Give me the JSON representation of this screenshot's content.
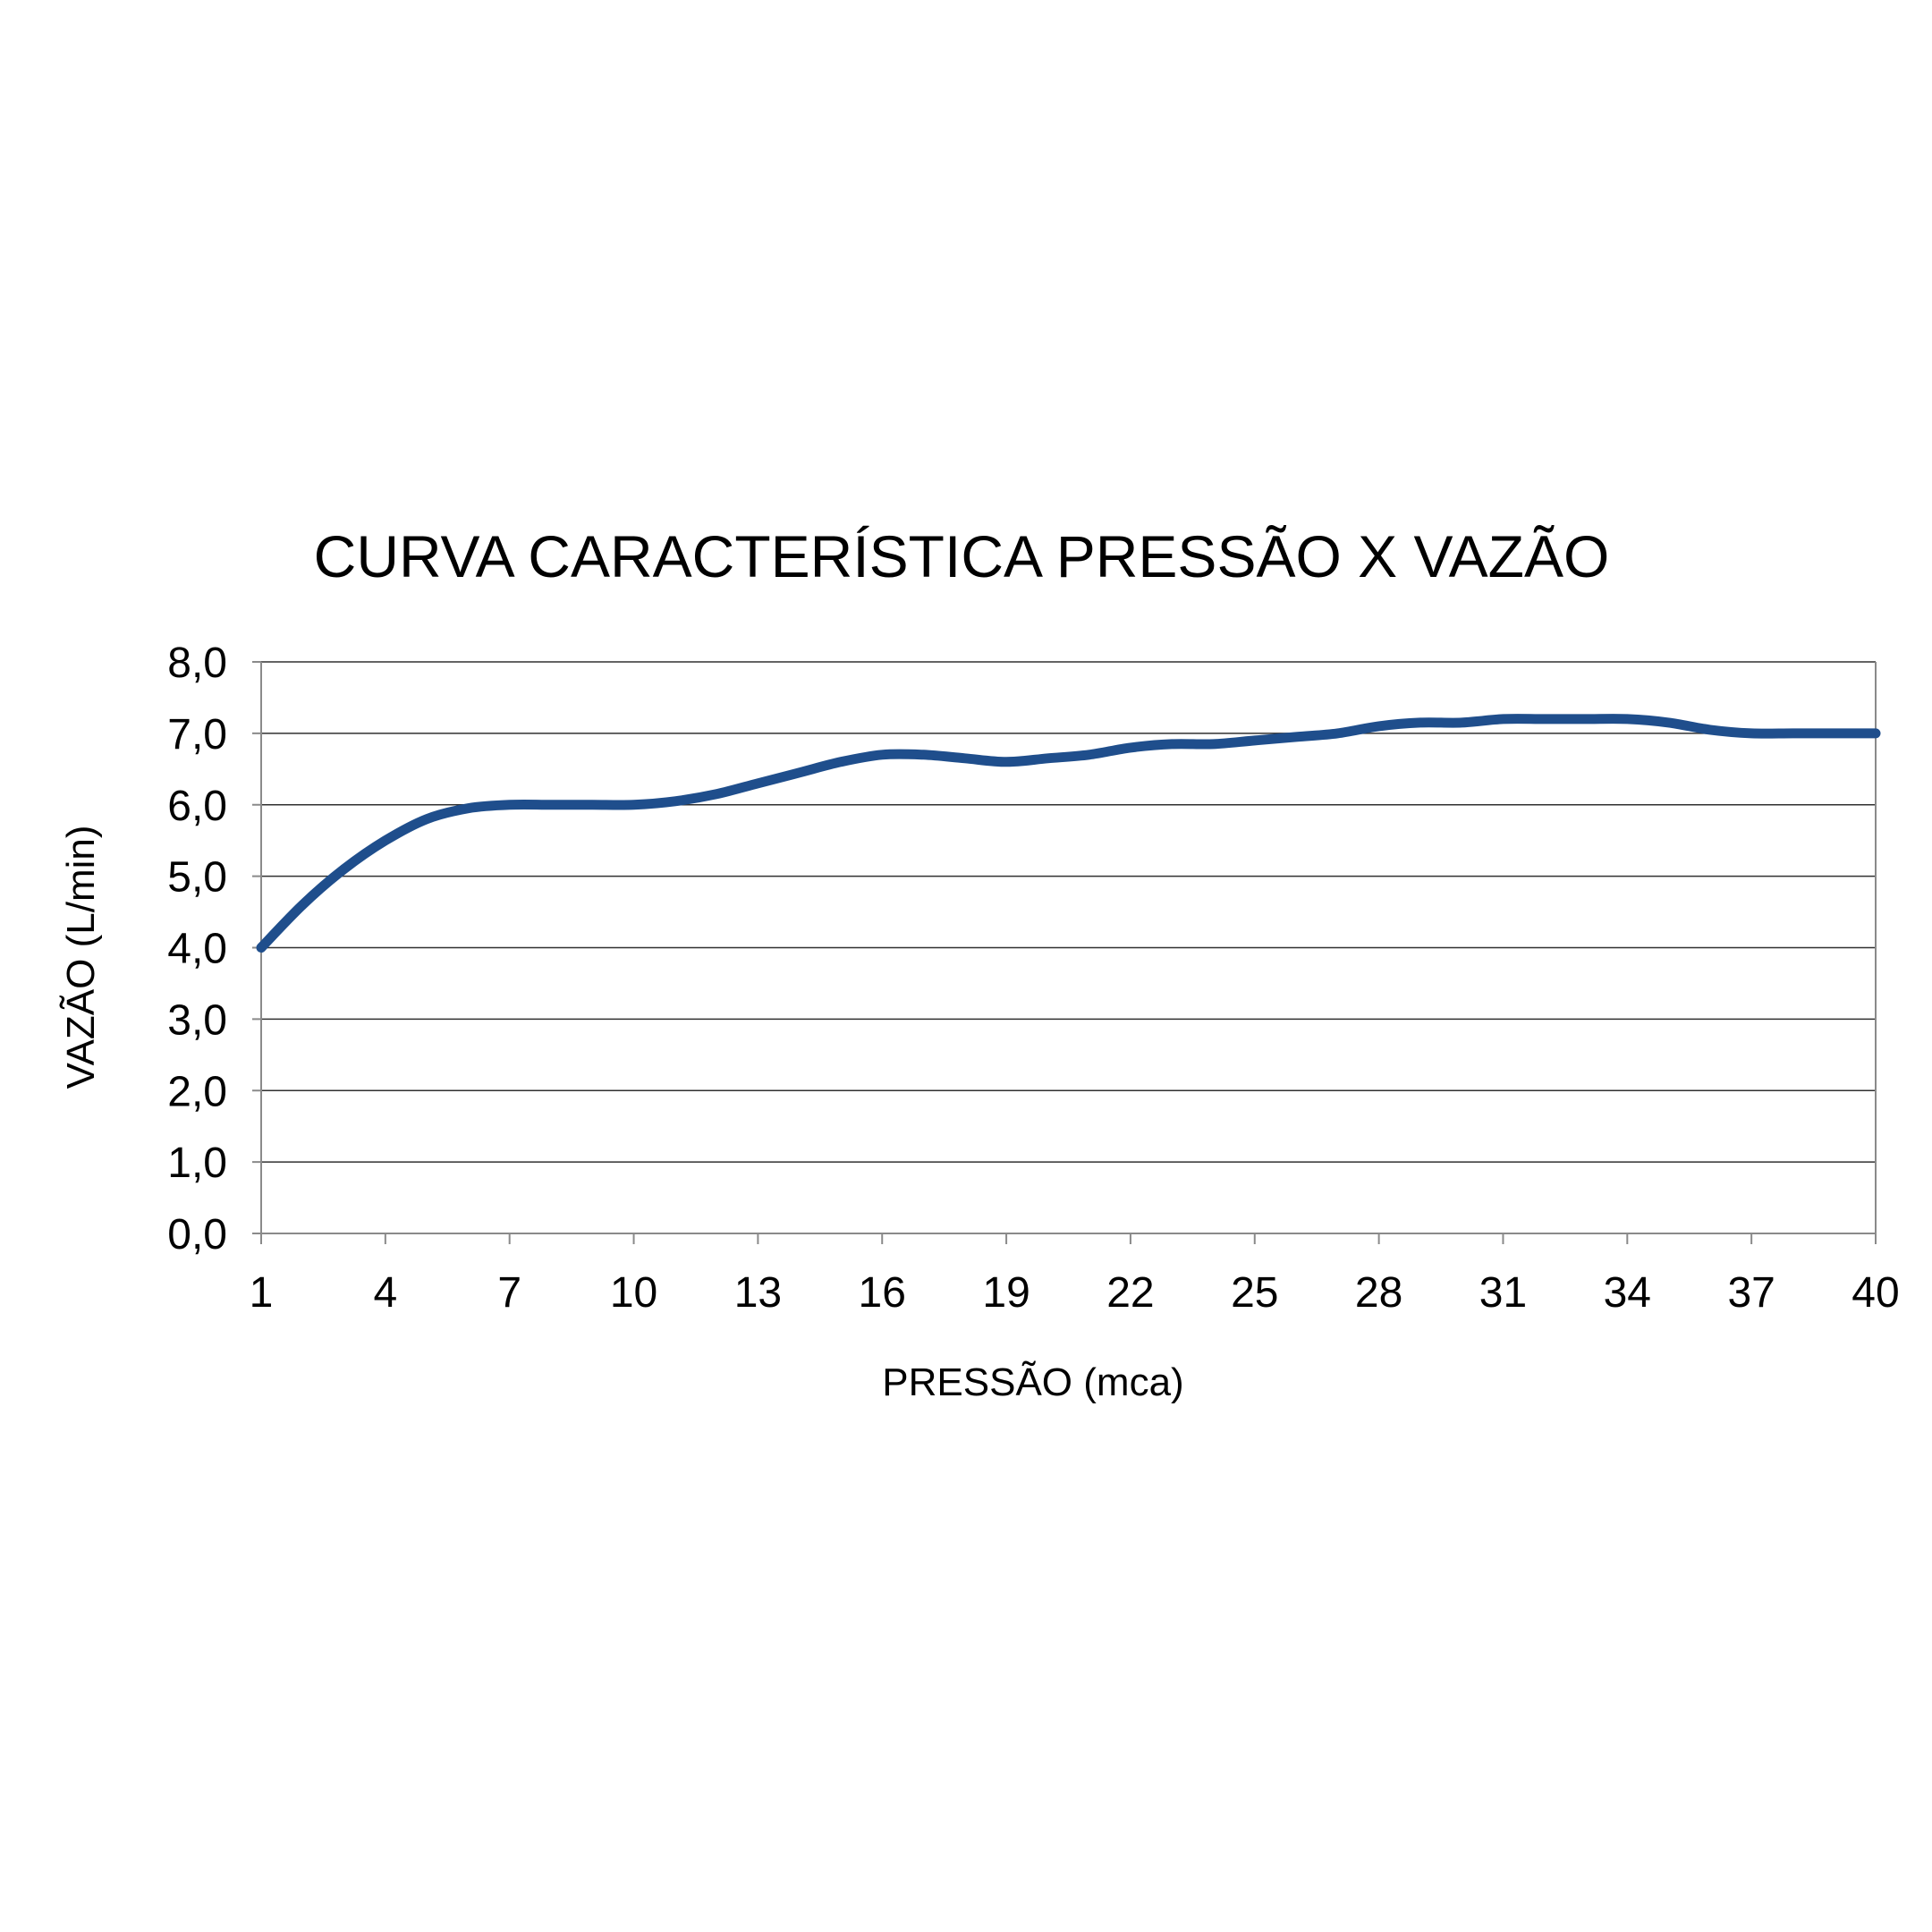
{
  "chart_data": {
    "type": "line",
    "title": "CURVA CARACTERÍSTICA PRESSÃO X VAZÃO",
    "xlabel": "PRESSÃO (mca)",
    "ylabel": "VAZÃO (L/min)",
    "x_tick_labels": [
      "1",
      "4",
      "7",
      "10",
      "13",
      "16",
      "19",
      "22",
      "25",
      "28",
      "31",
      "34",
      "37",
      "40"
    ],
    "y_tick_labels": [
      "0,0",
      "1,0",
      "2,0",
      "3,0",
      "4,0",
      "5,0",
      "6,0",
      "7,0",
      "8,0"
    ],
    "xlim": [
      1,
      40
    ],
    "ylim": [
      0,
      8
    ],
    "grid": "horizontal",
    "legend": "none",
    "line_color": "#1f4e8c",
    "series": [
      {
        "x": [
          1,
          2,
          3,
          4,
          5,
          6,
          7,
          8,
          9,
          10,
          11,
          12,
          13,
          14,
          15,
          16,
          17,
          18,
          19,
          20,
          21,
          22,
          23,
          24,
          25,
          26,
          27,
          28,
          29,
          30,
          31,
          32,
          33,
          34,
          35,
          36,
          37,
          38,
          39,
          40
        ],
        "values": [
          4.0,
          4.6,
          5.1,
          5.5,
          5.8,
          5.95,
          6.0,
          6.0,
          6.0,
          6.0,
          6.05,
          6.15,
          6.3,
          6.45,
          6.6,
          6.7,
          6.7,
          6.65,
          6.6,
          6.65,
          6.7,
          6.8,
          6.85,
          6.85,
          6.9,
          6.95,
          7.0,
          7.1,
          7.15,
          7.15,
          7.2,
          7.2,
          7.2,
          7.2,
          7.15,
          7.05,
          7.0,
          7.0,
          7.0,
          7.0
        ]
      }
    ]
  }
}
